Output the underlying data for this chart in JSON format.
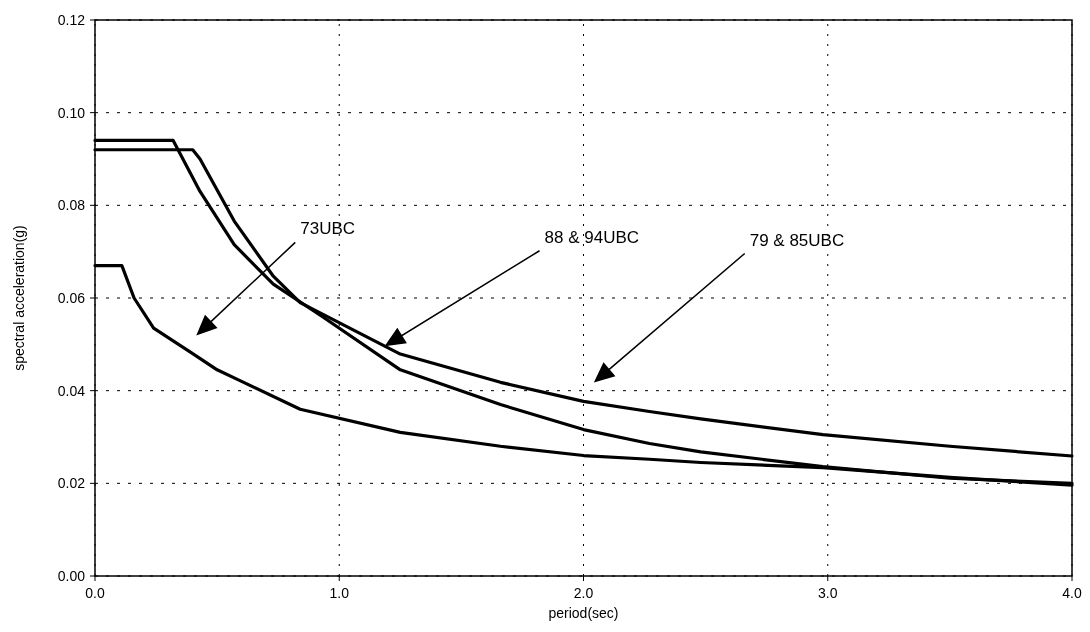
{
  "chart_data": {
    "type": "line",
    "xlabel": "period(sec)",
    "ylabel": "spectral acceleration(g)",
    "xlim": [
      0,
      4
    ],
    "ylim": [
      0,
      0.12
    ],
    "xticks": [
      {
        "value": 0,
        "label": "0.0"
      },
      {
        "value": 1,
        "label": "1.0"
      },
      {
        "value": 2,
        "label": "2.0"
      },
      {
        "value": 3,
        "label": "3.0"
      },
      {
        "value": 4,
        "label": "4.0"
      }
    ],
    "yticks": [
      {
        "value": 0,
        "label": "0.00"
      },
      {
        "value": 0.02,
        "label": "0.02"
      },
      {
        "value": 0.04,
        "label": "0.04"
      },
      {
        "value": 0.06,
        "label": "0.06"
      },
      {
        "value": 0.08,
        "label": "0.08"
      },
      {
        "value": 0.1,
        "label": "0.10"
      },
      {
        "value": 0.12,
        "label": "0.12"
      }
    ],
    "grid": true,
    "line_style": "solid",
    "marker": "none",
    "series": [
      {
        "color": "#000000",
        "x": [
          0,
          0.11,
          0.16,
          0.24,
          0.4,
          0.5,
          0.6,
          0.84,
          1.25,
          1.66,
          2.0,
          2.27,
          2.48,
          2.98,
          3.5,
          4.0
        ],
        "values": [
          0.067,
          0.067,
          0.06,
          0.0535,
          0.048,
          0.0445,
          0.042,
          0.036,
          0.031,
          0.028,
          0.026,
          0.0252,
          0.0245,
          0.0234,
          0.0213,
          0.0196
        ]
      },
      {
        "color": "#000000",
        "x": [
          0,
          0.32,
          0.43,
          0.57,
          0.73,
          0.93,
          1.25,
          1.66,
          2.0,
          2.27,
          2.48,
          2.98,
          3.5,
          4.0
        ],
        "values": [
          0.094,
          0.094,
          0.083,
          0.0715,
          0.063,
          0.056,
          0.0445,
          0.037,
          0.0316,
          0.0286,
          0.0268,
          0.0236,
          0.0211,
          0.02
        ]
      },
      {
        "color": "#000000",
        "x": [
          0,
          0.4,
          0.43,
          0.57,
          0.73,
          0.84,
          1.25,
          1.66,
          2.0,
          2.27,
          2.48,
          2.98,
          3.5,
          4.0
        ],
        "values": [
          0.092,
          0.092,
          0.09,
          0.0766,
          0.0647,
          0.059,
          0.0479,
          0.0418,
          0.0377,
          0.0355,
          0.0339,
          0.0305,
          0.028,
          0.0259
        ]
      }
    ],
    "annotations": [
      "73UBC",
      "88 & 94UBC",
      "79 & 85UBC"
    ]
  }
}
